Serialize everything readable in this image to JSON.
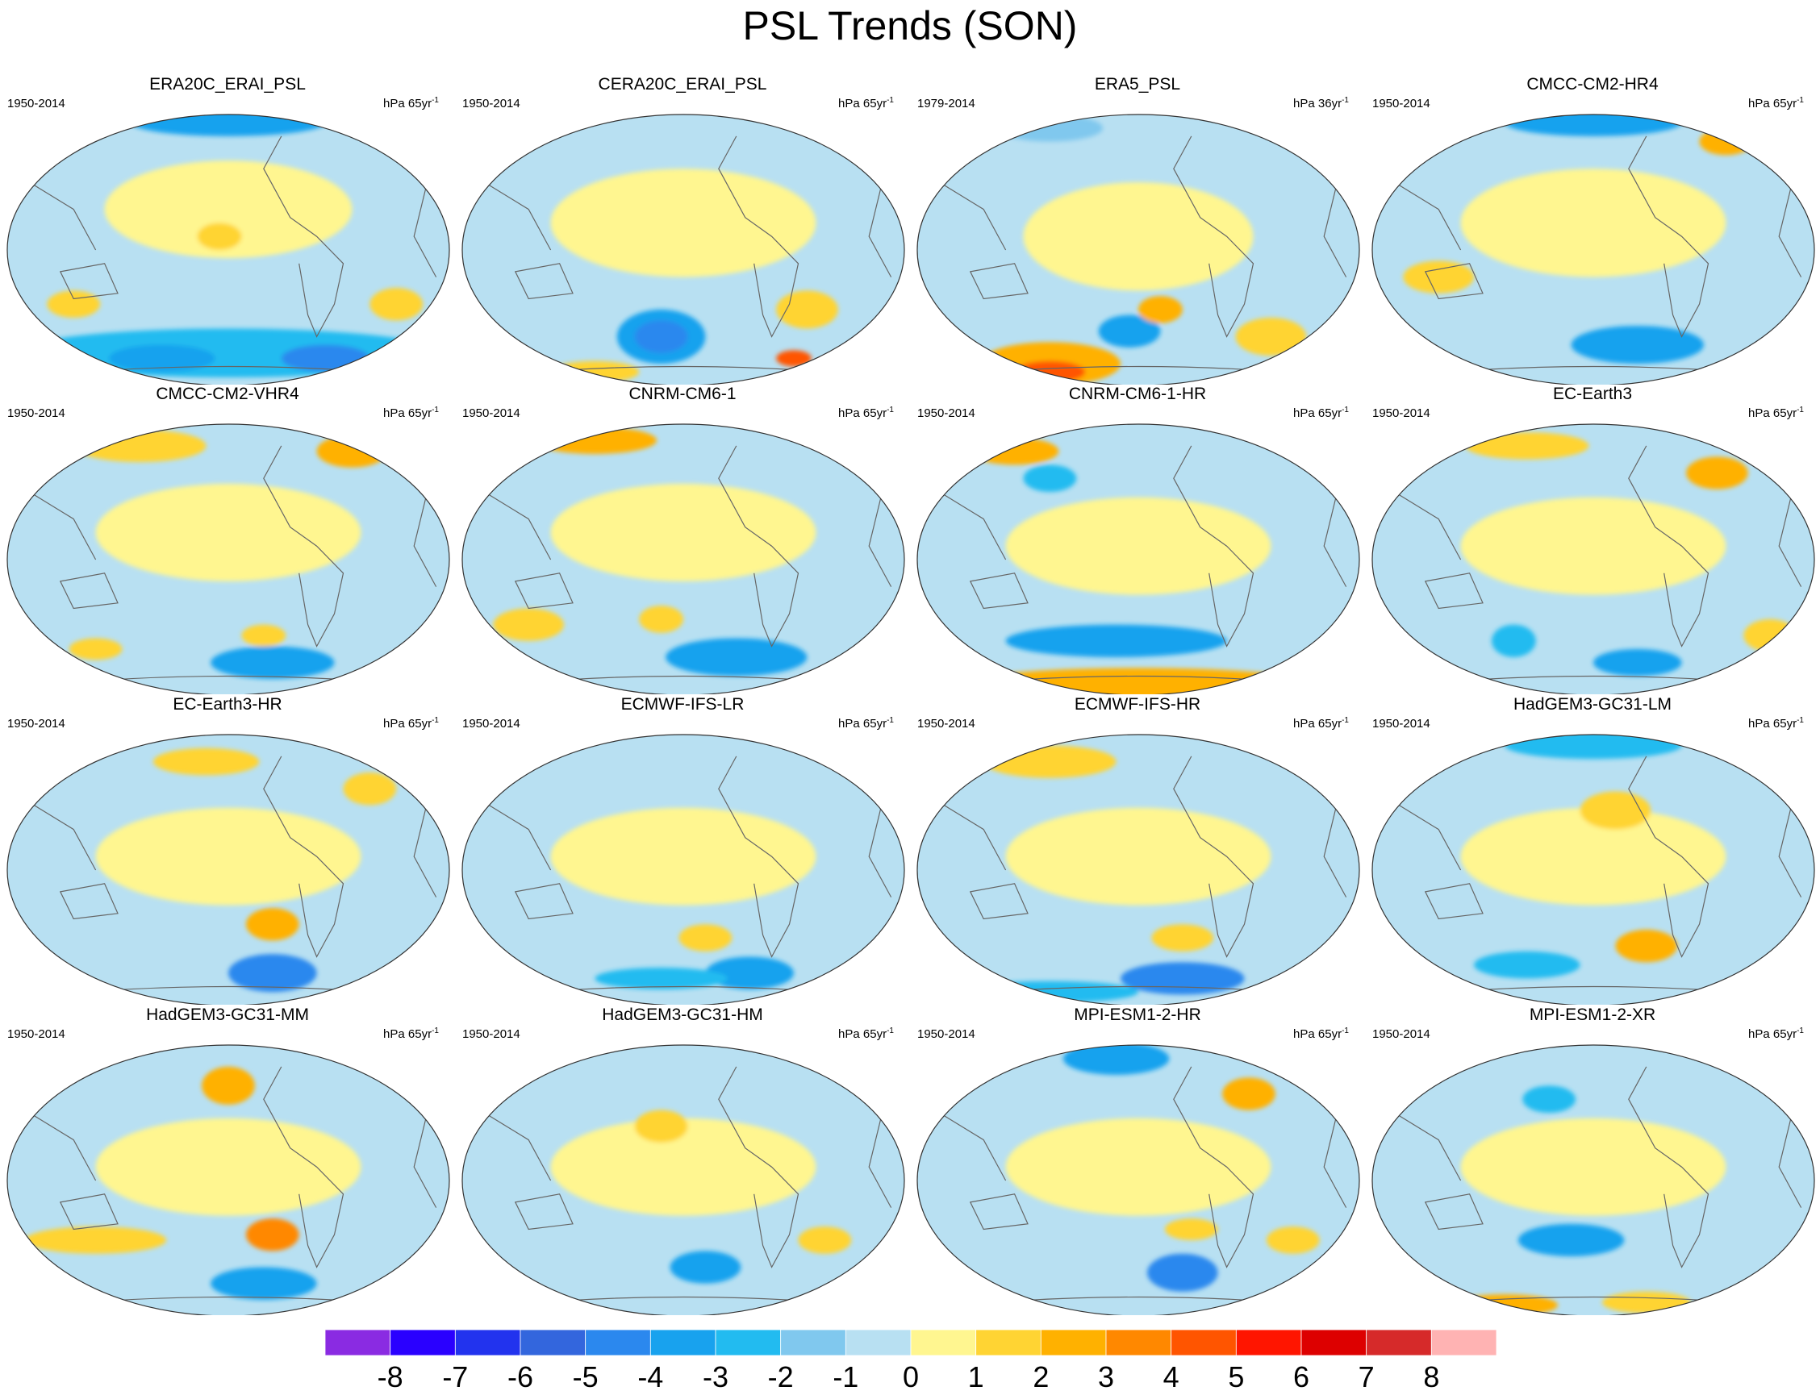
{
  "title": "PSL Trends (SON)",
  "panels": [
    {
      "name": "ERA20C_ERAI_PSL",
      "period": "1950-2014",
      "units_base": "hPa 65yr",
      "units_exp": "-1"
    },
    {
      "name": "CERA20C_ERAI_PSL",
      "period": "1950-2014",
      "units_base": "hPa 65yr",
      "units_exp": "-1"
    },
    {
      "name": "ERA5_PSL",
      "period": "1979-2014",
      "units_base": "hPa 36yr",
      "units_exp": "-1"
    },
    {
      "name": "CMCC-CM2-HR4",
      "period": "1950-2014",
      "units_base": "hPa 65yr",
      "units_exp": "-1"
    },
    {
      "name": "CMCC-CM2-VHR4",
      "period": "1950-2014",
      "units_base": "hPa 65yr",
      "units_exp": "-1"
    },
    {
      "name": "CNRM-CM6-1",
      "period": "1950-2014",
      "units_base": "hPa 65yr",
      "units_exp": "-1"
    },
    {
      "name": "CNRM-CM6-1-HR",
      "period": "1950-2014",
      "units_base": "hPa 65yr",
      "units_exp": "-1"
    },
    {
      "name": "EC-Earth3",
      "period": "1950-2014",
      "units_base": "hPa 65yr",
      "units_exp": "-1"
    },
    {
      "name": "EC-Earth3-HR",
      "period": "1950-2014",
      "units_base": "hPa 65yr",
      "units_exp": "-1"
    },
    {
      "name": "ECMWF-IFS-LR",
      "period": "1950-2014",
      "units_base": "hPa 65yr",
      "units_exp": "-1"
    },
    {
      "name": "ECMWF-IFS-HR",
      "period": "1950-2014",
      "units_base": "hPa 65yr",
      "units_exp": "-1"
    },
    {
      "name": "HadGEM3-GC31-LM",
      "period": "1950-2014",
      "units_base": "hPa 65yr",
      "units_exp": "-1"
    },
    {
      "name": "HadGEM3-GC31-MM",
      "period": "1950-2014",
      "units_base": "hPa 65yr",
      "units_exp": "-1"
    },
    {
      "name": "HadGEM3-GC31-HM",
      "period": "1950-2014",
      "units_base": "hPa 65yr",
      "units_exp": "-1"
    },
    {
      "name": "MPI-ESM1-2-HR",
      "period": "1950-2014",
      "units_base": "hPa 65yr",
      "units_exp": "-1"
    },
    {
      "name": "MPI-ESM1-2-XR",
      "period": "1950-2014",
      "units_base": "hPa 65yr",
      "units_exp": "-1"
    }
  ],
  "colorbar": {
    "labels": [
      "-8",
      "-7",
      "-6",
      "-5",
      "-4",
      "-3",
      "-2",
      "-1",
      "0",
      "1",
      "2",
      "3",
      "4",
      "5",
      "6",
      "7",
      "8"
    ],
    "colors": [
      "#8a2be2",
      "#2a00ff",
      "#2233ee",
      "#3366dd",
      "#2b88ee",
      "#18a2ee",
      "#22bbf0",
      "#80c8ee",
      "#b8e0f2",
      "#fff690",
      "#ffd433",
      "#ffb100",
      "#ff8800",
      "#ff5500",
      "#ff1500",
      "#dd0000",
      "#d62a2a",
      "#ffb3b3"
    ]
  }
}
